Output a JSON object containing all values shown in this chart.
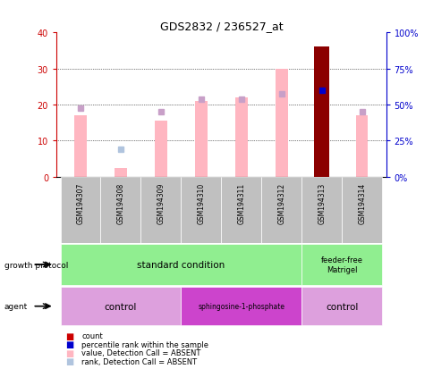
{
  "title": "GDS2832 / 236527_at",
  "samples": [
    "GSM194307",
    "GSM194308",
    "GSM194309",
    "GSM194310",
    "GSM194311",
    "GSM194312",
    "GSM194313",
    "GSM194314"
  ],
  "pink_bar_values": [
    17,
    2.5,
    15.5,
    21,
    22,
    30,
    0,
    17
  ],
  "pink_rank_values": [
    19,
    null,
    18,
    21.5,
    21.5,
    23,
    null,
    18
  ],
  "blue_rank_values": [
    null,
    7.5,
    null,
    null,
    null,
    null,
    null,
    null
  ],
  "dark_red_bar_idx": 6,
  "dark_red_bar_value": 36,
  "blue_dot_idx": 6,
  "blue_dot_value": 24,
  "ylim_left": [
    0,
    40
  ],
  "ylim_right": [
    0,
    100
  ],
  "yticks_left": [
    0,
    10,
    20,
    30,
    40
  ],
  "yticks_right": [
    0,
    25,
    50,
    75,
    100
  ],
  "ytick_labels_right": [
    "0%",
    "25%",
    "50%",
    "75%",
    "100%"
  ],
  "bar_width": 0.3,
  "pink_color": "#FFB6C1",
  "pink_rank_color": "#C8A0C8",
  "blue_dot_color": "#0000CD",
  "dark_red_color": "#8B0000",
  "light_blue_color": "#B0C4DE",
  "axis_left_color": "#CC0000",
  "axis_right_color": "#0000CC",
  "bg_color": "#FFFFFF",
  "sample_box_color": "#C0C0C0",
  "green_color": "#90EE90",
  "light_purple": "#DDA0DD",
  "dark_purple": "#CC44CC",
  "legend_colors": [
    "#CC0000",
    "#0000CD",
    "#FFB6C1",
    "#B0C4DE"
  ],
  "legend_labels": [
    "count",
    "percentile rank within the sample",
    "value, Detection Call = ABSENT",
    "rank, Detection Call = ABSENT"
  ]
}
